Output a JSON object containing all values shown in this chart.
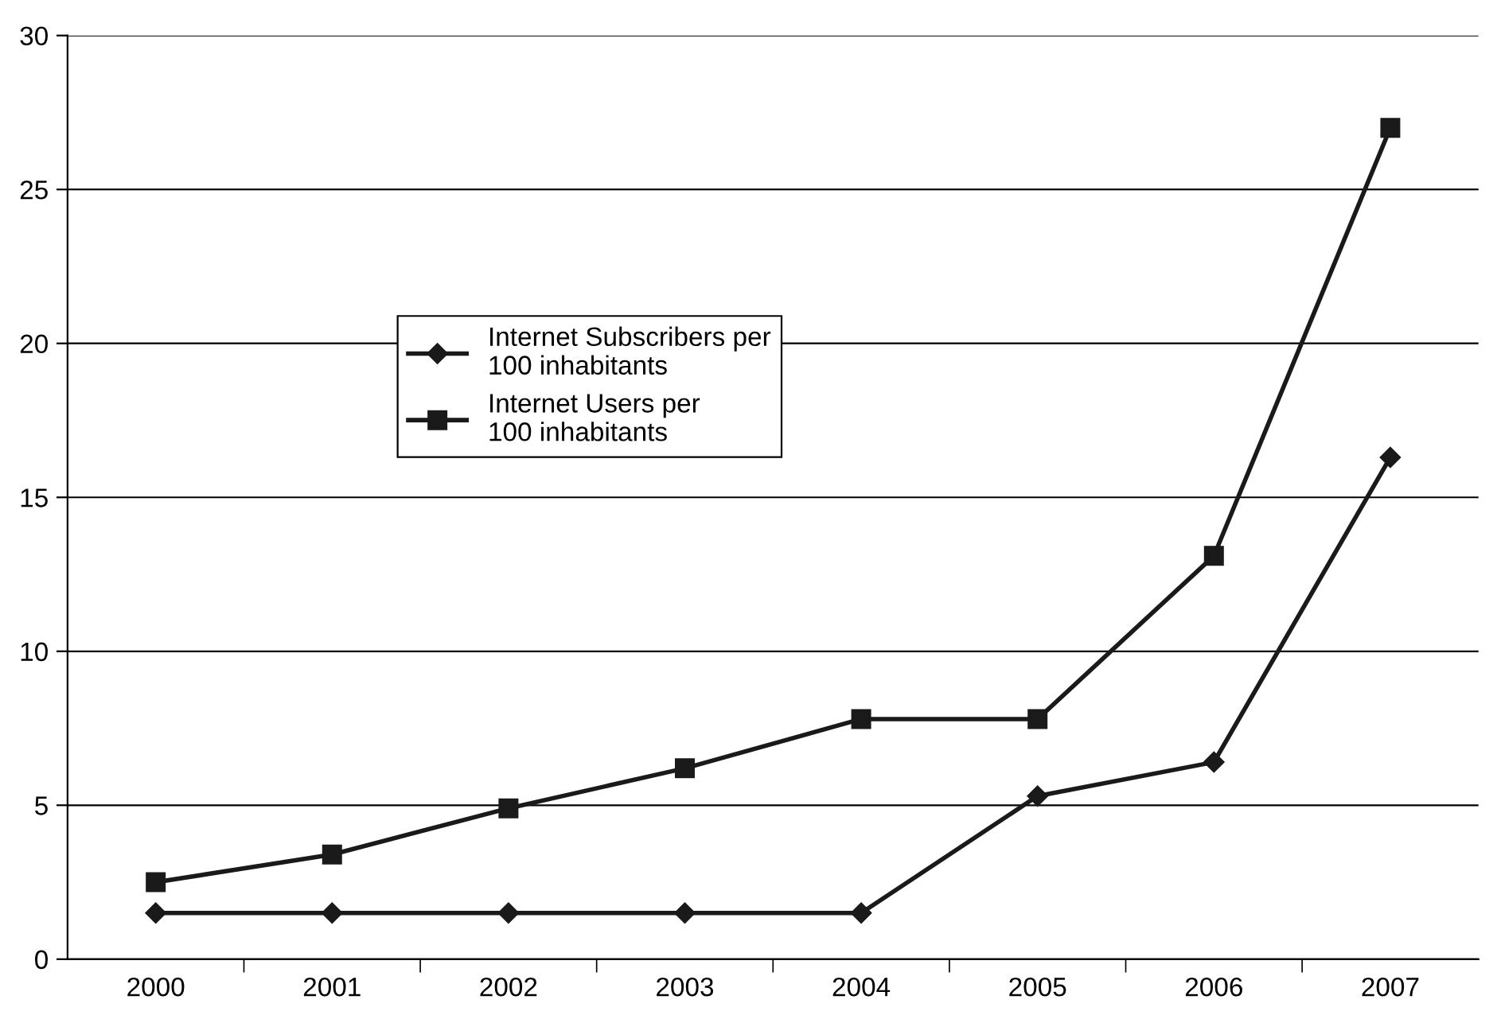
{
  "chart_data": {
    "type": "line",
    "categories": [
      "2000",
      "2001",
      "2002",
      "2003",
      "2004",
      "2005",
      "2006",
      "2007"
    ],
    "series": [
      {
        "name": "Internet Subscribers per\n100 inhabitants",
        "color": "#1a1a1a",
        "marker": "diamond",
        "values": [
          1.5,
          1.5,
          1.5,
          1.5,
          1.5,
          5.3,
          6.4,
          16.3
        ]
      },
      {
        "name": "Internet Users per\n100 inhabitants",
        "color": "#1a1a1a",
        "marker": "square",
        "values": [
          2.5,
          3.4,
          4.9,
          6.2,
          7.8,
          7.8,
          13.1,
          27.0
        ]
      }
    ],
    "ylim": [
      0,
      30
    ],
    "yticks": [
      0,
      5,
      10,
      15,
      20,
      25,
      30
    ],
    "grid": "y",
    "legend": "center",
    "line_style": "solid"
  }
}
